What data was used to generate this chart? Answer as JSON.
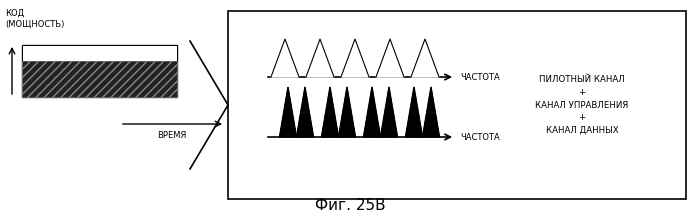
{
  "fig_width": 6.98,
  "fig_height": 2.19,
  "dpi": 100,
  "background_color": "#ffffff",
  "title": "Фиг. 25В",
  "title_fontsize": 11,
  "label_kod": "КОД\n(МОЩНОСТЬ)",
  "label_vremya": "ВРЕМЯ",
  "label_chastota1": "ЧАСТОТА",
  "label_chastota2": "ЧАСТОТА",
  "label_right": "ПИЛОТНЫЙ КАНАЛ\n+\nКАНАЛ УПРАВЛЕНИЯ\n+\nКАНАЛ ДАННЫХ",
  "font_size_small": 6.0,
  "font_size_right": 6.2
}
